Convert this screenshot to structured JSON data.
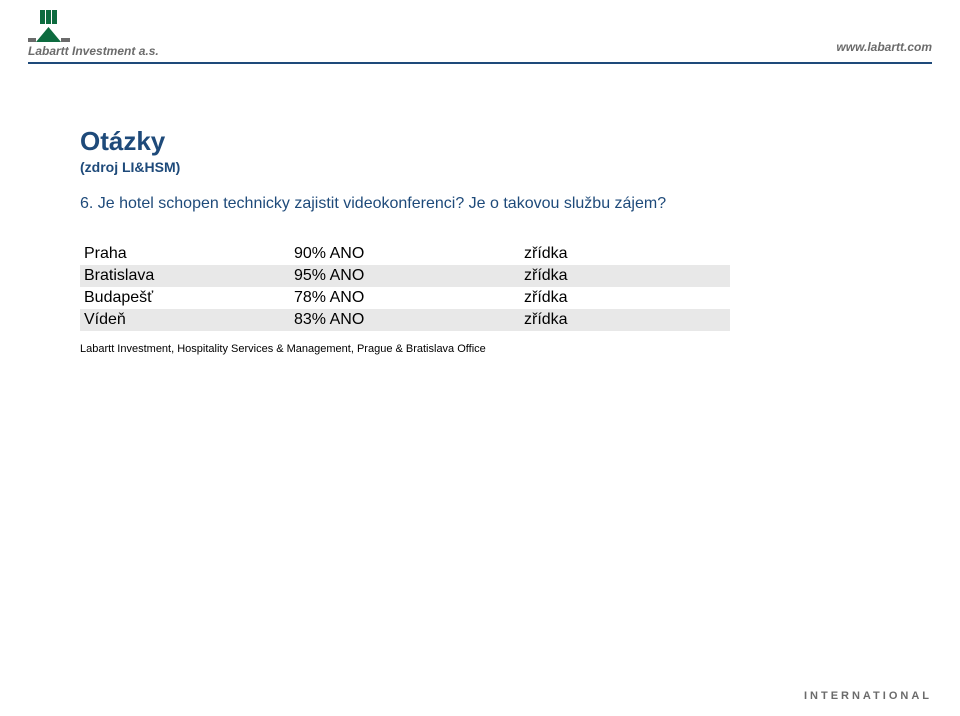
{
  "header": {
    "company": "Labartt Investment a.s.",
    "url": "www.labartt.com",
    "logo_color": "#0d6b3f",
    "divider_color": "#1e4a7a"
  },
  "content": {
    "title": "Otázky",
    "subtitle": "(zdroj LI&HSM)",
    "question": "6. Je hotel schopen technicky zajistit videokonferenci? Je o takovou službu zájem?",
    "title_color": "#1e4a7a",
    "footnote": "Labartt Investment, Hospitality Services & Management, Prague & Bratislava Office"
  },
  "table": {
    "alt_row_bg": "#e8e8e8",
    "rows": [
      {
        "city": "Praha",
        "value": "90% ANO",
        "freq": "zřídka"
      },
      {
        "city": "Bratislava",
        "value": "95% ANO",
        "freq": "zřídka"
      },
      {
        "city": "Budapešť",
        "value": "78% ANO",
        "freq": "zřídka"
      },
      {
        "city": "Vídeň",
        "value": "83% ANO",
        "freq": "zřídka"
      }
    ]
  },
  "footer": {
    "text": "INTERNATIONAL"
  }
}
